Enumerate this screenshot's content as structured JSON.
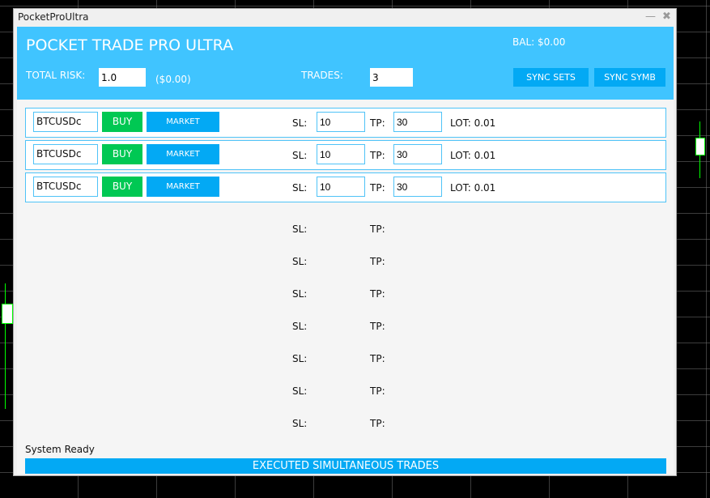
{
  "window": {
    "title": "PocketProUltra",
    "minimize": "—",
    "close": "✖"
  },
  "header": {
    "title": "POCKET TRADE PRO ULTRA",
    "balance": "BAL: $0.00",
    "total_risk_label": "TOTAL RISK:",
    "total_risk_value": "1.0",
    "risk_amount": "($0.00)",
    "trades_label": "TRADES:",
    "trades_value": "3",
    "sync_sets": "SYNC SETS",
    "sync_symb": "SYNC SYMB"
  },
  "rows": [
    {
      "symbol": "BTCUSDc",
      "side": "BUY",
      "type": "MARKET",
      "sl_label": "SL:",
      "sl": "10",
      "tp_label": "TP:",
      "tp": "30",
      "lot": "LOT: 0.01"
    },
    {
      "symbol": "BTCUSDc",
      "side": "BUY",
      "type": "MARKET",
      "sl_label": "SL:",
      "sl": "10",
      "tp_label": "TP:",
      "tp": "30",
      "lot": "LOT: 0.01"
    },
    {
      "symbol": "BTCUSDc",
      "side": "BUY",
      "type": "MARKET",
      "sl_label": "SL:",
      "sl": "10",
      "tp_label": "TP:",
      "tp": "30",
      "lot": "LOT: 0.01"
    }
  ],
  "empty_rows": {
    "sl_label": "SL:",
    "tp_label": "TP:"
  },
  "status": "System Ready",
  "execute_label": "EXECUTED SIMULTANEOUS TRADES",
  "colors": {
    "header": "#40c4ff",
    "button": "#03a9f4",
    "buy": "#00c853",
    "chart_bg": "#000000",
    "candle": "#00ff00"
  }
}
